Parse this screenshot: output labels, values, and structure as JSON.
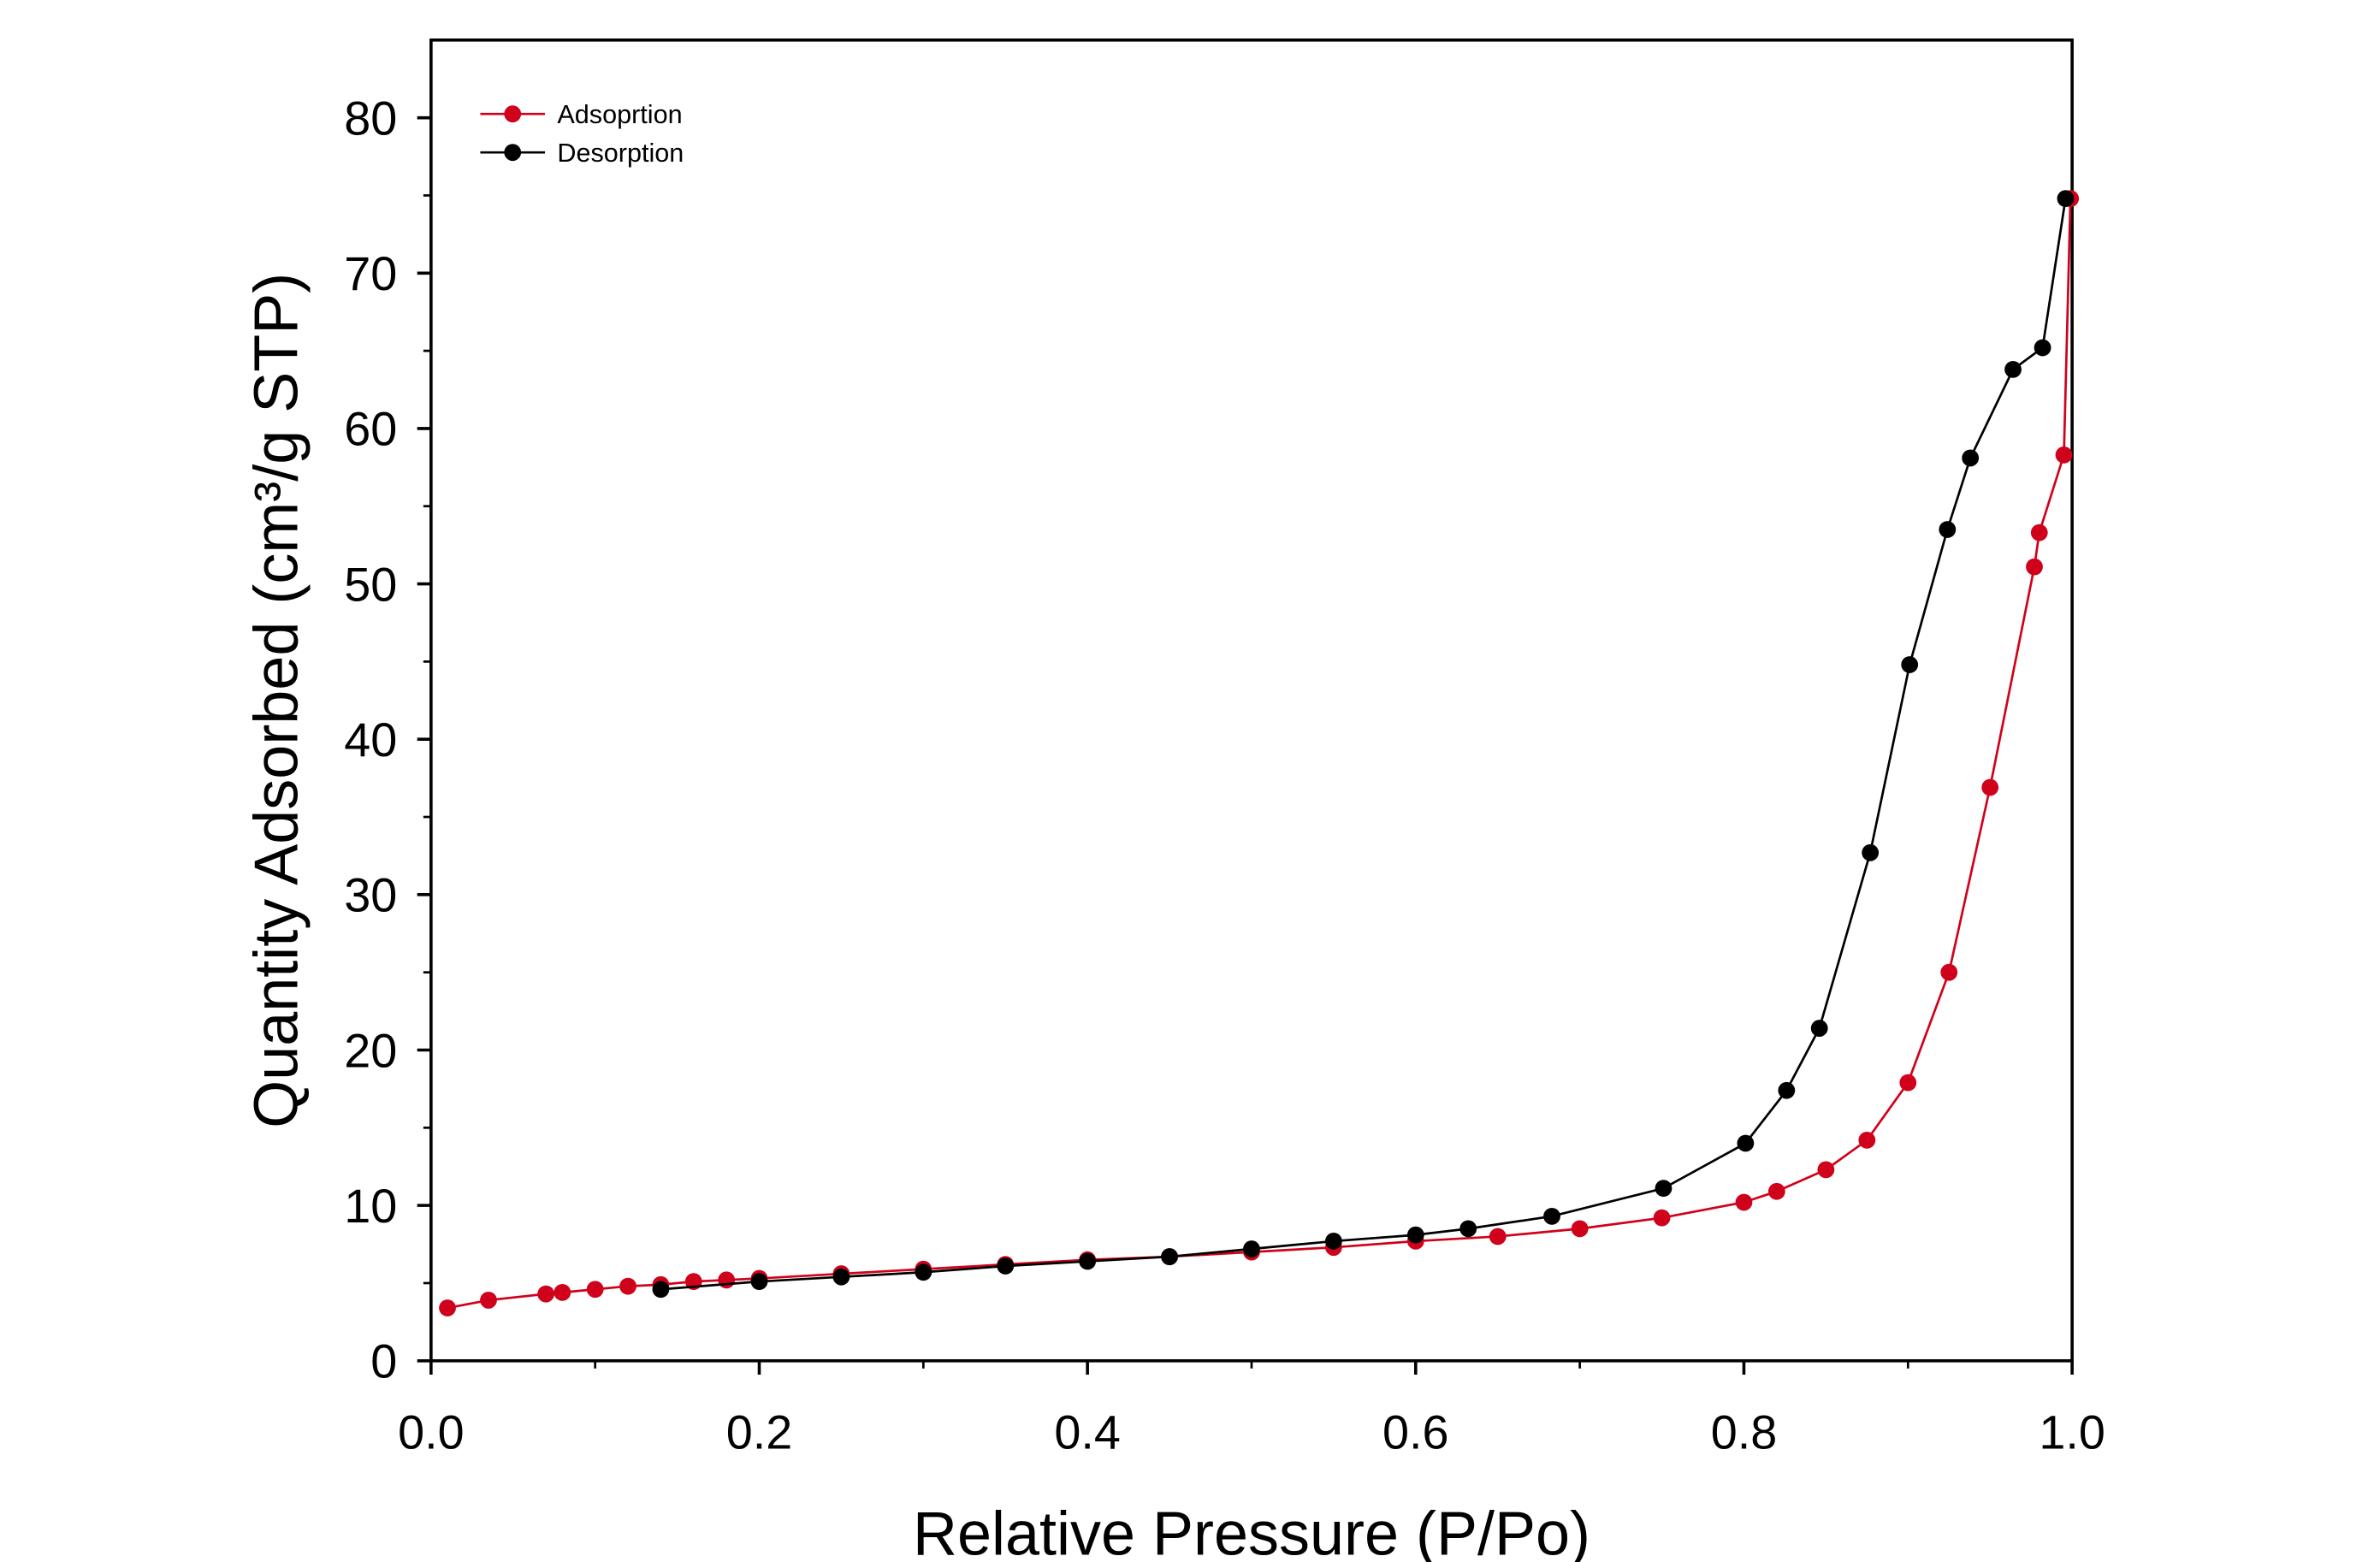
{
  "chart_data": {
    "type": "line",
    "xlabel": "Relative Pressure (P/Po)",
    "ylabel": "Quantity Adsorbed (cm³/g STP)",
    "xlim": [
      0,
      1
    ],
    "ylim": [
      0,
      85
    ],
    "xticks": [
      {
        "value": 0,
        "label": "0.0"
      },
      0.2,
      0.4,
      0.6,
      0.8,
      {
        "value": 1,
        "label": "1.0"
      }
    ],
    "yticks": [
      0,
      10,
      20,
      30,
      40,
      50,
      60,
      70,
      80
    ],
    "grid": false,
    "legend": "upper left",
    "series": [
      {
        "name": "Adsoprtion",
        "color": "#d0021b",
        "x": [
          0.01,
          0.035,
          0.07,
          0.08,
          0.1,
          0.12,
          0.14,
          0.16,
          0.18,
          0.2,
          0.25,
          0.3,
          0.35,
          0.4,
          0.45,
          0.5,
          0.55,
          0.6,
          0.65,
          0.7,
          0.75,
          0.8,
          0.82,
          0.85,
          0.875,
          0.9,
          0.925,
          0.95,
          0.977,
          0.98,
          0.995,
          0.999
        ],
        "values": [
          3.4,
          3.9,
          4.3,
          4.4,
          4.6,
          4.8,
          4.9,
          5.1,
          5.2,
          5.3,
          5.6,
          5.9,
          6.2,
          6.5,
          6.7,
          7.0,
          7.3,
          7.7,
          8.0,
          8.5,
          9.2,
          10.2,
          10.9,
          12.3,
          14.2,
          17.9,
          25.0,
          36.9,
          51.1,
          53.3,
          58.3,
          74.8
        ]
      },
      {
        "name": "Desorption",
        "color": "#000000",
        "x": [
          0.996,
          0.982,
          0.964,
          0.938,
          0.924,
          0.901,
          0.877,
          0.846,
          0.826,
          0.801,
          0.751,
          0.683,
          0.632,
          0.6,
          0.55,
          0.5,
          0.45,
          0.4,
          0.35,
          0.3,
          0.25,
          0.2,
          0.14
        ],
        "values": [
          74.8,
          65.2,
          63.8,
          58.1,
          53.5,
          44.8,
          32.7,
          21.4,
          17.4,
          14.0,
          11.1,
          9.3,
          8.5,
          8.1,
          7.7,
          7.2,
          6.7,
          6.4,
          6.1,
          5.7,
          5.4,
          5.1,
          4.6
        ]
      }
    ]
  }
}
